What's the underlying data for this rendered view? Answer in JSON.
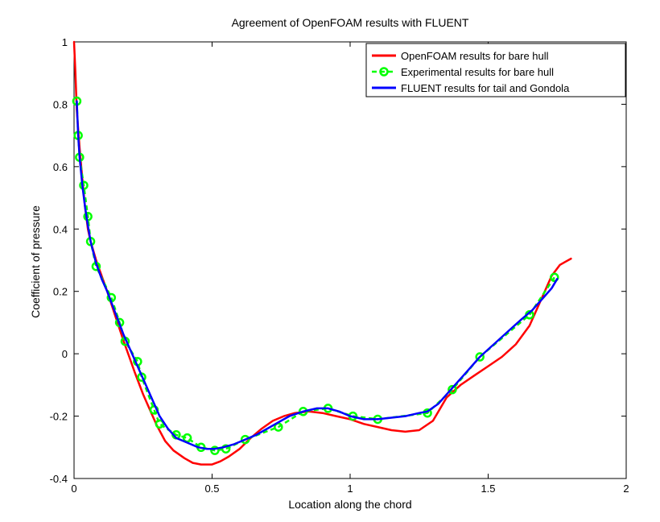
{
  "chart_data": {
    "type": "line",
    "title": "Agreement of OpenFOAM results with FLUENT",
    "xlabel": "Location along the chord",
    "ylabel": "Coefficient of pressure",
    "xlim": [
      0,
      2
    ],
    "ylim": [
      -0.4,
      1
    ],
    "xticks": [
      0,
      0.5,
      1,
      1.5,
      2
    ],
    "xtick_labels": [
      "0",
      "0.5",
      "1",
      "1.5",
      "2"
    ],
    "yticks": [
      -0.4,
      -0.2,
      0,
      0.2,
      0.4,
      0.6,
      0.8,
      1
    ],
    "ytick_labels": [
      "-0.4",
      "-0.2",
      "0",
      "0.2",
      "0.4",
      "0.6",
      "0.8",
      "1"
    ],
    "grid": false,
    "legend_position": "top-right",
    "series": [
      {
        "name": "OpenFOAM results for bare hull",
        "color": "#ff0000",
        "style": "line",
        "x": [
          0,
          0.005,
          0.01,
          0.02,
          0.03,
          0.04,
          0.05,
          0.06,
          0.08,
          0.1,
          0.12,
          0.15,
          0.18,
          0.2,
          0.22,
          0.25,
          0.28,
          0.3,
          0.33,
          0.36,
          0.4,
          0.43,
          0.46,
          0.5,
          0.53,
          0.56,
          0.6,
          0.64,
          0.68,
          0.72,
          0.76,
          0.8,
          0.85,
          0.9,
          0.95,
          1.0,
          1.05,
          1.1,
          1.15,
          1.2,
          1.25,
          1.3,
          1.35,
          1.4,
          1.45,
          1.5,
          1.55,
          1.6,
          1.65,
          1.7,
          1.73,
          1.76,
          1.78,
          1.8
        ],
        "y": [
          1.0,
          0.9,
          0.78,
          0.66,
          0.56,
          0.47,
          0.4,
          0.36,
          0.3,
          0.25,
          0.2,
          0.12,
          0.04,
          -0.01,
          -0.06,
          -0.13,
          -0.19,
          -0.23,
          -0.28,
          -0.31,
          -0.335,
          -0.35,
          -0.355,
          -0.355,
          -0.345,
          -0.33,
          -0.305,
          -0.27,
          -0.24,
          -0.215,
          -0.2,
          -0.19,
          -0.185,
          -0.19,
          -0.2,
          -0.21,
          -0.225,
          -0.235,
          -0.245,
          -0.25,
          -0.245,
          -0.215,
          -0.14,
          -0.1,
          -0.07,
          -0.04,
          -0.01,
          0.03,
          0.09,
          0.19,
          0.25,
          0.285,
          0.295,
          0.305
        ]
      },
      {
        "name": "Experimental results for bare hull",
        "color": "#00ff00",
        "style": "dashed-circles",
        "x": [
          0.01,
          0.015,
          0.02,
          0.035,
          0.05,
          0.06,
          0.08,
          0.135,
          0.165,
          0.185,
          0.23,
          0.245,
          0.29,
          0.31,
          0.37,
          0.41,
          0.46,
          0.51,
          0.55,
          0.62,
          0.74,
          0.83,
          0.92,
          1.01,
          1.1,
          1.28,
          1.37,
          1.47,
          1.65,
          1.74
        ],
        "y": [
          0.81,
          0.7,
          0.63,
          0.54,
          0.44,
          0.36,
          0.28,
          0.18,
          0.1,
          0.04,
          -0.025,
          -0.075,
          -0.18,
          -0.225,
          -0.26,
          -0.27,
          -0.3,
          -0.31,
          -0.305,
          -0.275,
          -0.235,
          -0.185,
          -0.175,
          -0.2,
          -0.21,
          -0.19,
          -0.115,
          -0.01,
          0.125,
          0.245
        ]
      },
      {
        "name": "FLUENT results for tail and Gondola",
        "color": "#0000ff",
        "style": "line",
        "x": [
          0.01,
          0.015,
          0.02,
          0.03,
          0.04,
          0.05,
          0.06,
          0.08,
          0.1,
          0.12,
          0.15,
          0.18,
          0.2,
          0.23,
          0.26,
          0.29,
          0.31,
          0.34,
          0.37,
          0.41,
          0.45,
          0.48,
          0.51,
          0.54,
          0.58,
          0.62,
          0.66,
          0.7,
          0.74,
          0.78,
          0.83,
          0.88,
          0.92,
          0.96,
          1.0,
          1.05,
          1.1,
          1.15,
          1.2,
          1.25,
          1.28,
          1.32,
          1.37,
          1.42,
          1.47,
          1.52,
          1.57,
          1.62,
          1.66,
          1.7,
          1.73,
          1.75
        ],
        "y": [
          0.81,
          0.7,
          0.63,
          0.54,
          0.47,
          0.41,
          0.36,
          0.29,
          0.24,
          0.2,
          0.13,
          0.06,
          0.02,
          -0.04,
          -0.1,
          -0.16,
          -0.2,
          -0.24,
          -0.27,
          -0.285,
          -0.3,
          -0.305,
          -0.305,
          -0.3,
          -0.29,
          -0.275,
          -0.26,
          -0.24,
          -0.22,
          -0.2,
          -0.185,
          -0.175,
          -0.175,
          -0.185,
          -0.2,
          -0.21,
          -0.21,
          -0.205,
          -0.2,
          -0.19,
          -0.185,
          -0.16,
          -0.11,
          -0.06,
          -0.01,
          0.03,
          0.07,
          0.11,
          0.14,
          0.18,
          0.21,
          0.24
        ]
      }
    ]
  }
}
